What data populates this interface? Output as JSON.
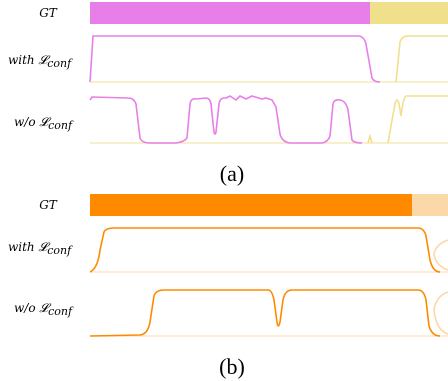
{
  "panels": [
    {
      "caption": "(a)",
      "color_a": "#e87ee8",
      "color_b": "#f0e08c",
      "rows": [
        {
          "id": "gt",
          "label": "GT",
          "label_sub": ""
        },
        {
          "id": "with",
          "label": "with 𝓛",
          "label_sub": "conf"
        },
        {
          "id": "wo",
          "label": "w/o 𝓛",
          "label_sub": "conf"
        }
      ]
    },
    {
      "caption": "(b)",
      "color_a": "#ff8a00",
      "color_b": "#fbd8a8",
      "rows": [
        {
          "id": "gt",
          "label": "GT",
          "label_sub": ""
        },
        {
          "id": "with",
          "label": "with 𝓛",
          "label_sub": "conf"
        },
        {
          "id": "wo",
          "label": "w/o 𝓛",
          "label_sub": "conf"
        }
      ]
    }
  ]
}
